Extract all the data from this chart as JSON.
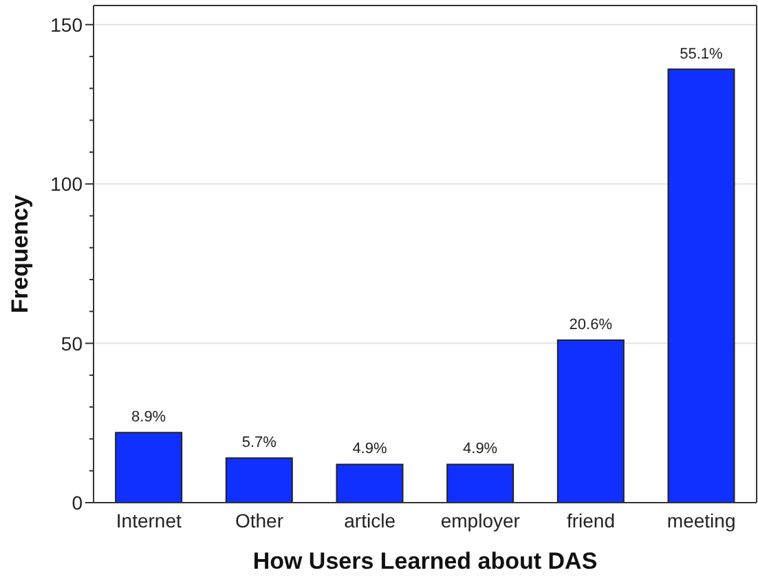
{
  "chart_data": {
    "type": "bar",
    "xlabel": "How Users Learned about DAS",
    "ylabel": "Frequency",
    "categories": [
      "Internet",
      "Other",
      "article",
      "employer",
      "friend",
      "meeting"
    ],
    "values": [
      22,
      14,
      12,
      12,
      51,
      136
    ],
    "annotations": [
      {
        "text": "8.9%",
        "x": "Internet",
        "y": 22
      },
      {
        "text": "5.7%",
        "x": "Other",
        "y": 14
      },
      {
        "text": "4.9%",
        "x": "article",
        "y": 12
      },
      {
        "text": "4.9%",
        "x": "employer",
        "y": 12
      },
      {
        "text": "20.6%",
        "x": "friend",
        "y": 51
      },
      {
        "text": "55.1%",
        "x": "meeting",
        "y": 136
      }
    ],
    "color": "#1030ff",
    "ylim": [
      0,
      156
    ],
    "yticks": [
      0,
      {
        "value": 10,
        "label": null
      },
      {
        "value": 20,
        "label": null
      },
      {
        "value": 30,
        "label": null
      },
      {
        "value": 40,
        "label": null
      },
      50,
      {
        "value": 60,
        "label": null
      },
      {
        "value": 70,
        "label": null
      },
      {
        "value": 80,
        "label": null
      },
      {
        "value": 90,
        "label": null
      },
      100,
      {
        "value": 110,
        "label": null
      },
      {
        "value": 120,
        "label": null
      },
      {
        "value": 130,
        "label": null
      },
      {
        "value": 140,
        "label": null
      },
      150
    ],
    "grid": "y"
  }
}
